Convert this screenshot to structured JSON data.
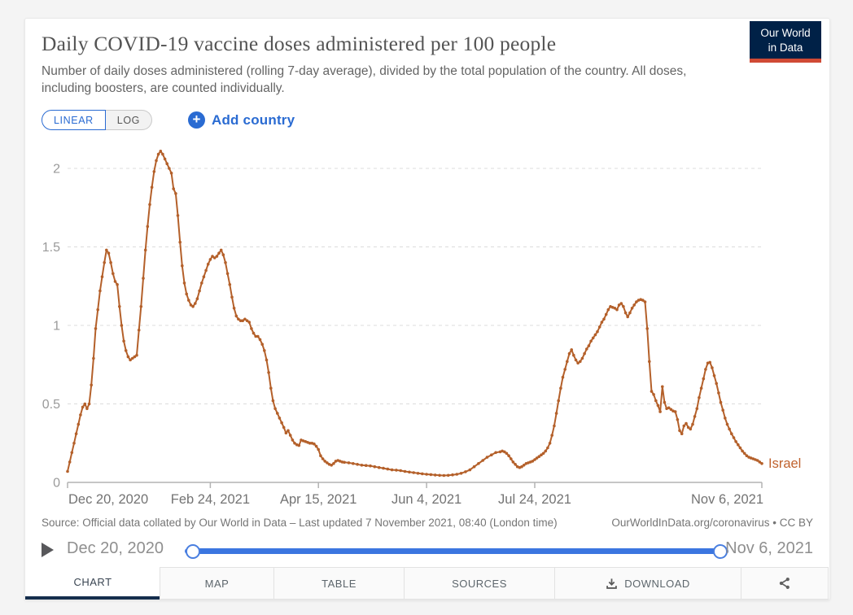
{
  "header": {
    "title": "Daily COVID-19 vaccine doses administered per 100 people",
    "subtitle": "Number of daily doses administered (rolling 7-day average), divided by the total population of the country. All doses, including boosters, are counted individually.",
    "logo": {
      "line1": "Our World",
      "line2": "in Data",
      "bg_color": "#002147",
      "bar_color": "#d04a35"
    }
  },
  "controls": {
    "linear_label": "LINEAR",
    "log_label": "LOG",
    "active_scale": "LINEAR",
    "add_country_label": "Add country",
    "plus_glyph": "+",
    "accent_blue": "#2a6bd2"
  },
  "chart_data": {
    "type": "line",
    "title": "Daily COVID-19 vaccine doses administered per 100 people",
    "grid": "dashed",
    "legend_position": "end-of-line",
    "xlim_days": [
      0,
      321
    ],
    "ylim": [
      0,
      2.2
    ],
    "y_ticks": [
      0,
      0.5,
      1,
      1.5,
      2
    ],
    "x_ticks": [
      {
        "day": 0,
        "label": "Dec 20, 2020"
      },
      {
        "day": 66,
        "label": "Feb 24, 2021"
      },
      {
        "day": 116,
        "label": "Apr 15, 2021"
      },
      {
        "day": 166,
        "label": "Jun 4, 2021"
      },
      {
        "day": 216,
        "label": "Jul 24, 2021"
      },
      {
        "day": 321,
        "label": "Nov 6, 2021"
      }
    ],
    "series": [
      {
        "name": "Israel",
        "color": "#b4602a",
        "label_color": "#c0622e",
        "start_date": "2020-12-20",
        "points": [
          [
            0,
            0.07
          ],
          [
            1,
            0.13
          ],
          [
            2,
            0.19
          ],
          [
            3,
            0.25
          ],
          [
            4,
            0.31
          ],
          [
            5,
            0.37
          ],
          [
            6,
            0.43
          ],
          [
            7,
            0.48
          ],
          [
            8,
            0.5
          ],
          [
            9,
            0.47
          ],
          [
            10,
            0.5
          ],
          [
            11,
            0.62
          ],
          [
            12,
            0.79
          ],
          [
            13,
            0.98
          ],
          [
            14,
            1.1
          ],
          [
            15,
            1.22
          ],
          [
            16,
            1.31
          ],
          [
            17,
            1.4
          ],
          [
            18,
            1.48
          ],
          [
            19,
            1.46
          ],
          [
            20,
            1.4
          ],
          [
            21,
            1.33
          ],
          [
            22,
            1.28
          ],
          [
            23,
            1.26
          ],
          [
            24,
            1.12
          ],
          [
            25,
            1.0
          ],
          [
            26,
            0.9
          ],
          [
            27,
            0.84
          ],
          [
            28,
            0.8
          ],
          [
            29,
            0.78
          ],
          [
            30,
            0.79
          ],
          [
            31,
            0.8
          ],
          [
            32,
            0.81
          ],
          [
            33,
            0.97
          ],
          [
            34,
            1.12
          ],
          [
            35,
            1.3
          ],
          [
            36,
            1.48
          ],
          [
            37,
            1.63
          ],
          [
            38,
            1.77
          ],
          [
            39,
            1.88
          ],
          [
            40,
            1.98
          ],
          [
            41,
            2.05
          ],
          [
            42,
            2.09
          ],
          [
            43,
            2.11
          ],
          [
            44,
            2.09
          ],
          [
            45,
            2.06
          ],
          [
            46,
            2.03
          ],
          [
            47,
            2.0
          ],
          [
            48,
            1.97
          ],
          [
            49,
            1.87
          ],
          [
            50,
            1.84
          ],
          [
            51,
            1.7
          ],
          [
            52,
            1.53
          ],
          [
            53,
            1.38
          ],
          [
            54,
            1.27
          ],
          [
            55,
            1.2
          ],
          [
            56,
            1.16
          ],
          [
            57,
            1.13
          ],
          [
            58,
            1.12
          ],
          [
            59,
            1.14
          ],
          [
            60,
            1.17
          ],
          [
            61,
            1.22
          ],
          [
            62,
            1.27
          ],
          [
            63,
            1.31
          ],
          [
            64,
            1.35
          ],
          [
            65,
            1.39
          ],
          [
            66,
            1.42
          ],
          [
            67,
            1.44
          ],
          [
            68,
            1.43
          ],
          [
            69,
            1.44
          ],
          [
            70,
            1.46
          ],
          [
            71,
            1.48
          ],
          [
            72,
            1.45
          ],
          [
            73,
            1.4
          ],
          [
            74,
            1.33
          ],
          [
            75,
            1.26
          ],
          [
            76,
            1.18
          ],
          [
            77,
            1.11
          ],
          [
            78,
            1.06
          ],
          [
            79,
            1.04
          ],
          [
            80,
            1.03
          ],
          [
            81,
            1.03
          ],
          [
            82,
            1.04
          ],
          [
            83,
            1.03
          ],
          [
            84,
            1.02
          ],
          [
            85,
            0.98
          ],
          [
            86,
            0.95
          ],
          [
            87,
            0.93
          ],
          [
            88,
            0.93
          ],
          [
            89,
            0.91
          ],
          [
            90,
            0.88
          ],
          [
            91,
            0.84
          ],
          [
            92,
            0.78
          ],
          [
            93,
            0.7
          ],
          [
            94,
            0.6
          ],
          [
            95,
            0.52
          ],
          [
            96,
            0.47
          ],
          [
            97,
            0.44
          ],
          [
            98,
            0.41
          ],
          [
            99,
            0.38
          ],
          [
            100,
            0.35
          ],
          [
            101,
            0.315
          ],
          [
            102,
            0.33
          ],
          [
            103,
            0.3
          ],
          [
            104,
            0.27
          ],
          [
            105,
            0.25
          ],
          [
            106,
            0.24
          ],
          [
            107,
            0.235
          ],
          [
            108,
            0.27
          ],
          [
            109,
            0.265
          ],
          [
            110,
            0.26
          ],
          [
            111,
            0.255
          ],
          [
            112,
            0.25
          ],
          [
            113,
            0.25
          ],
          [
            114,
            0.245
          ],
          [
            115,
            0.23
          ],
          [
            116,
            0.21
          ],
          [
            117,
            0.17
          ],
          [
            118,
            0.15
          ],
          [
            119,
            0.135
          ],
          [
            120,
            0.125
          ],
          [
            121,
            0.115
          ],
          [
            122,
            0.11
          ],
          [
            123,
            0.12
          ],
          [
            124,
            0.135
          ],
          [
            125,
            0.14
          ],
          [
            126,
            0.135
          ],
          [
            127,
            0.13
          ],
          [
            128,
            0.128
          ],
          [
            130,
            0.125
          ],
          [
            132,
            0.12
          ],
          [
            134,
            0.115
          ],
          [
            136,
            0.11
          ],
          [
            138,
            0.108
          ],
          [
            140,
            0.105
          ],
          [
            142,
            0.1
          ],
          [
            144,
            0.095
          ],
          [
            146,
            0.09
          ],
          [
            148,
            0.085
          ],
          [
            150,
            0.08
          ],
          [
            152,
            0.078
          ],
          [
            154,
            0.075
          ],
          [
            156,
            0.07
          ],
          [
            158,
            0.066
          ],
          [
            160,
            0.062
          ],
          [
            162,
            0.058
          ],
          [
            164,
            0.055
          ],
          [
            166,
            0.052
          ],
          [
            168,
            0.05
          ],
          [
            170,
            0.047
          ],
          [
            172,
            0.045
          ],
          [
            174,
            0.044
          ],
          [
            176,
            0.045
          ],
          [
            178,
            0.048
          ],
          [
            180,
            0.052
          ],
          [
            182,
            0.058
          ],
          [
            184,
            0.068
          ],
          [
            186,
            0.08
          ],
          [
            188,
            0.1
          ],
          [
            190,
            0.12
          ],
          [
            192,
            0.14
          ],
          [
            194,
            0.16
          ],
          [
            196,
            0.175
          ],
          [
            198,
            0.19
          ],
          [
            200,
            0.195
          ],
          [
            201,
            0.2
          ],
          [
            202,
            0.195
          ],
          [
            203,
            0.185
          ],
          [
            204,
            0.17
          ],
          [
            205,
            0.15
          ],
          [
            206,
            0.13
          ],
          [
            207,
            0.115
          ],
          [
            208,
            0.1
          ],
          [
            209,
            0.095
          ],
          [
            210,
            0.1
          ],
          [
            211,
            0.11
          ],
          [
            212,
            0.12
          ],
          [
            213,
            0.125
          ],
          [
            214,
            0.13
          ],
          [
            215,
            0.135
          ],
          [
            216,
            0.145
          ],
          [
            217,
            0.155
          ],
          [
            218,
            0.165
          ],
          [
            219,
            0.175
          ],
          [
            220,
            0.185
          ],
          [
            221,
            0.2
          ],
          [
            222,
            0.22
          ],
          [
            223,
            0.25
          ],
          [
            224,
            0.3
          ],
          [
            225,
            0.36
          ],
          [
            226,
            0.44
          ],
          [
            227,
            0.52
          ],
          [
            228,
            0.6
          ],
          [
            229,
            0.67
          ],
          [
            230,
            0.72
          ],
          [
            231,
            0.77
          ],
          [
            232,
            0.82
          ],
          [
            233,
            0.845
          ],
          [
            234,
            0.81
          ],
          [
            235,
            0.78
          ],
          [
            236,
            0.76
          ],
          [
            237,
            0.77
          ],
          [
            238,
            0.79
          ],
          [
            239,
            0.82
          ],
          [
            240,
            0.85
          ],
          [
            241,
            0.87
          ],
          [
            242,
            0.9
          ],
          [
            243,
            0.92
          ],
          [
            244,
            0.94
          ],
          [
            245,
            0.96
          ],
          [
            246,
            0.99
          ],
          [
            247,
            1.02
          ],
          [
            248,
            1.04
          ],
          [
            249,
            1.07
          ],
          [
            250,
            1.1
          ],
          [
            251,
            1.12
          ],
          [
            252,
            1.115
          ],
          [
            253,
            1.11
          ],
          [
            254,
            1.1
          ],
          [
            255,
            1.13
          ],
          [
            256,
            1.14
          ],
          [
            257,
            1.12
          ],
          [
            258,
            1.08
          ],
          [
            259,
            1.055
          ],
          [
            260,
            1.08
          ],
          [
            261,
            1.11
          ],
          [
            262,
            1.13
          ],
          [
            263,
            1.15
          ],
          [
            264,
            1.16
          ],
          [
            265,
            1.165
          ],
          [
            266,
            1.16
          ],
          [
            267,
            1.15
          ],
          [
            268,
            0.98
          ],
          [
            269,
            0.77
          ],
          [
            270,
            0.58
          ],
          [
            271,
            0.56
          ],
          [
            272,
            0.52
          ],
          [
            273,
            0.49
          ],
          [
            274,
            0.45
          ],
          [
            275,
            0.61
          ],
          [
            276,
            0.51
          ],
          [
            277,
            0.47
          ],
          [
            278,
            0.475
          ],
          [
            279,
            0.465
          ],
          [
            280,
            0.455
          ],
          [
            281,
            0.45
          ],
          [
            282,
            0.4
          ],
          [
            283,
            0.33
          ],
          [
            284,
            0.31
          ],
          [
            285,
            0.36
          ],
          [
            286,
            0.375
          ],
          [
            287,
            0.35
          ],
          [
            288,
            0.34
          ],
          [
            289,
            0.37
          ],
          [
            290,
            0.42
          ],
          [
            291,
            0.47
          ],
          [
            292,
            0.54
          ],
          [
            293,
            0.6
          ],
          [
            294,
            0.66
          ],
          [
            295,
            0.72
          ],
          [
            296,
            0.76
          ],
          [
            297,
            0.765
          ],
          [
            298,
            0.73
          ],
          [
            299,
            0.68
          ],
          [
            300,
            0.63
          ],
          [
            301,
            0.57
          ],
          [
            302,
            0.51
          ],
          [
            303,
            0.46
          ],
          [
            304,
            0.41
          ],
          [
            305,
            0.37
          ],
          [
            306,
            0.34
          ],
          [
            307,
            0.31
          ],
          [
            308,
            0.285
          ],
          [
            309,
            0.26
          ],
          [
            310,
            0.24
          ],
          [
            311,
            0.22
          ],
          [
            312,
            0.2
          ],
          [
            313,
            0.185
          ],
          [
            314,
            0.17
          ],
          [
            315,
            0.16
          ],
          [
            316,
            0.155
          ],
          [
            317,
            0.15
          ],
          [
            318,
            0.145
          ],
          [
            319,
            0.14
          ],
          [
            320,
            0.13
          ],
          [
            321,
            0.12
          ]
        ]
      }
    ]
  },
  "footer": {
    "source": "Source: Official data collated by Our World in Data – Last updated 7 November 2021, 08:40 (London time)",
    "attribution": "OurWorldInData.org/coronavirus • CC BY"
  },
  "timeline": {
    "start_label": "Dec 20, 2020",
    "end_label": "Nov 6, 2021",
    "track_color": "#3b76e0"
  },
  "tabs": [
    {
      "label": "CHART",
      "active": true
    },
    {
      "label": "MAP"
    },
    {
      "label": "TABLE"
    },
    {
      "label": "SOURCES"
    },
    {
      "label": "DOWNLOAD",
      "icon": "download-icon"
    },
    {
      "label": "",
      "icon": "share-icon"
    }
  ]
}
